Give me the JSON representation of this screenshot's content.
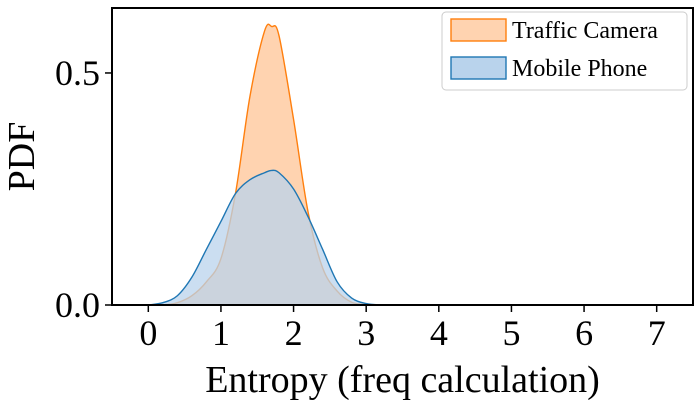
{
  "chart_data": {
    "type": "area",
    "title": "",
    "xlabel": "Entropy (freq calculation)",
    "ylabel": "PDF",
    "xlim": [
      -0.5,
      7.5
    ],
    "ylim": [
      0,
      0.64
    ],
    "xticks": [
      0,
      1,
      2,
      3,
      4,
      5,
      6,
      7
    ],
    "yticks": [
      0.0,
      0.5
    ],
    "ytick_labels": [
      "0.0",
      "0.5"
    ],
    "grid": false,
    "legend_position": "top-right",
    "x": [
      0.0,
      0.2,
      0.4,
      0.6,
      0.8,
      1.0,
      1.2,
      1.4,
      1.6,
      1.7,
      1.8,
      2.0,
      2.2,
      2.4,
      2.6,
      2.8,
      3.0,
      3.2
    ],
    "series": [
      {
        "name": "Traffic Camera",
        "line_color": "#ff7f0e",
        "fill_color": "#ffd3b0",
        "values": [
          0.0,
          0.0,
          0.005,
          0.02,
          0.05,
          0.1,
          0.24,
          0.45,
          0.59,
          0.6,
          0.58,
          0.4,
          0.2,
          0.08,
          0.03,
          0.006,
          0.001,
          0.0
        ]
      },
      {
        "name": "Mobile Phone",
        "line_color": "#1f77b4",
        "fill_color": "#b9d3ec",
        "values": [
          0.0,
          0.005,
          0.02,
          0.06,
          0.12,
          0.18,
          0.24,
          0.27,
          0.285,
          0.29,
          0.285,
          0.25,
          0.19,
          0.12,
          0.05,
          0.015,
          0.003,
          0.0
        ]
      }
    ]
  }
}
